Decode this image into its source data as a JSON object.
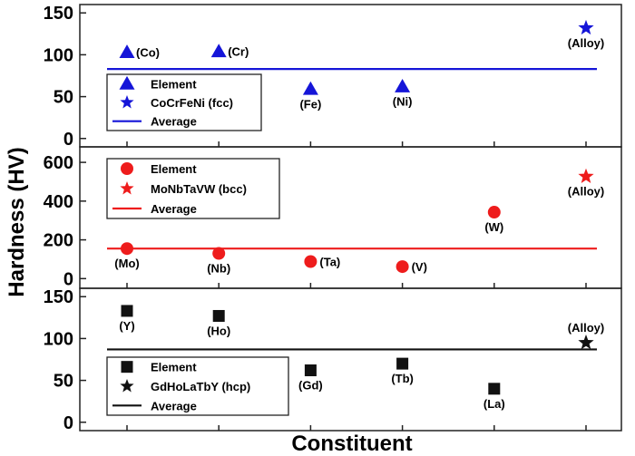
{
  "chart_data": [
    {
      "type": "scatter",
      "ylim": [
        -10,
        160
      ],
      "yticks": [
        "0",
        "50",
        "100",
        "150"
      ],
      "points": [
        {
          "label": "(Co)",
          "x": 1,
          "y": 103,
          "marker": "triangle",
          "label_side": "right"
        },
        {
          "label": "(Cr)",
          "x": 2,
          "y": 104,
          "marker": "triangle",
          "label_side": "right"
        },
        {
          "label": "(Fe)",
          "x": 3,
          "y": 59,
          "marker": "triangle",
          "label_side": "below"
        },
        {
          "label": "(Ni)",
          "x": 4,
          "y": 62,
          "marker": "triangle",
          "label_side": "below"
        },
        {
          "label": "(Alloy)",
          "x": 6,
          "y": 132,
          "marker": "star",
          "label_side": "below"
        }
      ],
      "average": 83,
      "color": "#1515d8",
      "legend": [
        "Element",
        "CoCrFeNi (fcc)",
        "Average"
      ],
      "legend_position": "bottom-left"
    },
    {
      "type": "scatter",
      "ylim": [
        -50,
        680
      ],
      "yticks": [
        "0",
        "200",
        "400",
        "600"
      ],
      "points": [
        {
          "label": "(Mo)",
          "x": 1,
          "y": 155,
          "marker": "circle",
          "label_side": "below"
        },
        {
          "label": "(Nb)",
          "x": 2,
          "y": 130,
          "marker": "circle",
          "label_side": "below"
        },
        {
          "label": "(Ta)",
          "x": 3,
          "y": 88,
          "marker": "circle",
          "label_side": "right"
        },
        {
          "label": "(V)",
          "x": 4,
          "y": 62,
          "marker": "circle",
          "label_side": "right"
        },
        {
          "label": "(W)",
          "x": 5,
          "y": 343,
          "marker": "circle",
          "label_side": "below"
        },
        {
          "label": "(Alloy)",
          "x": 6,
          "y": 527,
          "marker": "star",
          "label_side": "below"
        }
      ],
      "average": 155,
      "color": "#ee1c1c",
      "legend": [
        "Element",
        "MoNbTaVW (bcc)",
        "Average"
      ],
      "legend_position": "top-left"
    },
    {
      "type": "scatter",
      "ylim": [
        -10,
        160
      ],
      "yticks": [
        "0",
        "50",
        "100",
        "150"
      ],
      "points": [
        {
          "label": "(Y)",
          "x": 1,
          "y": 133,
          "marker": "square",
          "label_side": "below"
        },
        {
          "label": "(Ho)",
          "x": 2,
          "y": 127,
          "marker": "square",
          "label_side": "below"
        },
        {
          "label": "(Gd)",
          "x": 3,
          "y": 62,
          "marker": "square",
          "label_side": "below"
        },
        {
          "label": "(Tb)",
          "x": 4,
          "y": 70,
          "marker": "square",
          "label_side": "below"
        },
        {
          "label": "(La)",
          "x": 5,
          "y": 40,
          "marker": "square",
          "label_side": "below"
        },
        {
          "label": "(Alloy)",
          "x": 6,
          "y": 95,
          "marker": "star",
          "label_side": "above"
        }
      ],
      "average": 87,
      "color": "#111111",
      "legend": [
        "Element",
        "GdHoLaTbY (hcp)",
        "Average"
      ],
      "legend_position": "bottom-left"
    }
  ],
  "ylabel": "Hardness (HV)",
  "xlabel": "Constituent"
}
